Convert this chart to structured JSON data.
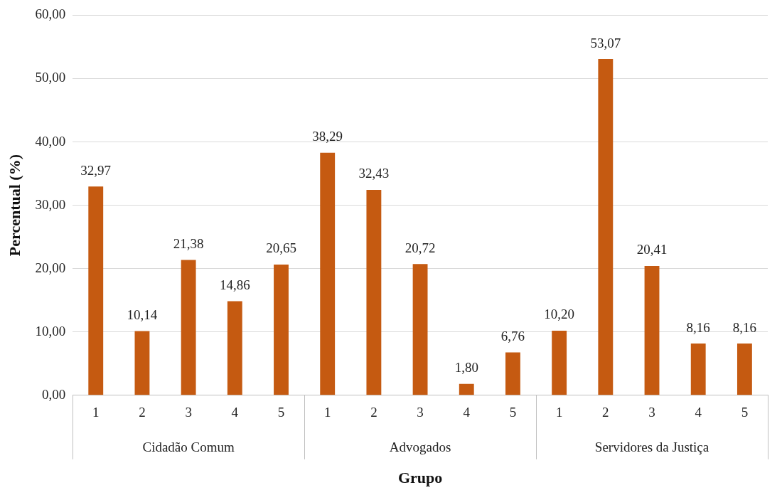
{
  "chart_data": {
    "type": "bar",
    "xlabel": "Grupo",
    "ylabel": "Percentual (%)",
    "categories": [
      "1",
      "2",
      "3",
      "4",
      "5",
      "1",
      "2",
      "3",
      "4",
      "5",
      "1",
      "2",
      "3",
      "4",
      "5"
    ],
    "values": [
      32.97,
      10.14,
      21.38,
      14.86,
      20.65,
      38.29,
      32.43,
      20.72,
      1.8,
      6.76,
      10.2,
      53.07,
      20.41,
      8.16,
      8.16
    ],
    "value_labels": [
      "32,97",
      "10,14",
      "21,38",
      "14,86",
      "20,65",
      "38,29",
      "32,43",
      "20,72",
      "1,80",
      "6,76",
      "10,20",
      "53,07",
      "20,41",
      "8,16",
      "8,16"
    ],
    "color": "#c55a11",
    "annotations": [
      "Cidadão Comum",
      "Advogados",
      "Servidores da Justiça"
    ],
    "ylim": [
      0,
      60
    ],
    "yticks": [
      {
        "value": 0,
        "label": "0,00"
      },
      {
        "value": 10,
        "label": "10,00"
      },
      {
        "value": 20,
        "label": "20,00"
      },
      {
        "value": 30,
        "label": "30,00"
      },
      {
        "value": 40,
        "label": "40,00"
      },
      {
        "value": 50,
        "label": "50,00"
      },
      {
        "value": 60,
        "label": "60,00"
      }
    ],
    "grid": "y",
    "legend": false
  }
}
